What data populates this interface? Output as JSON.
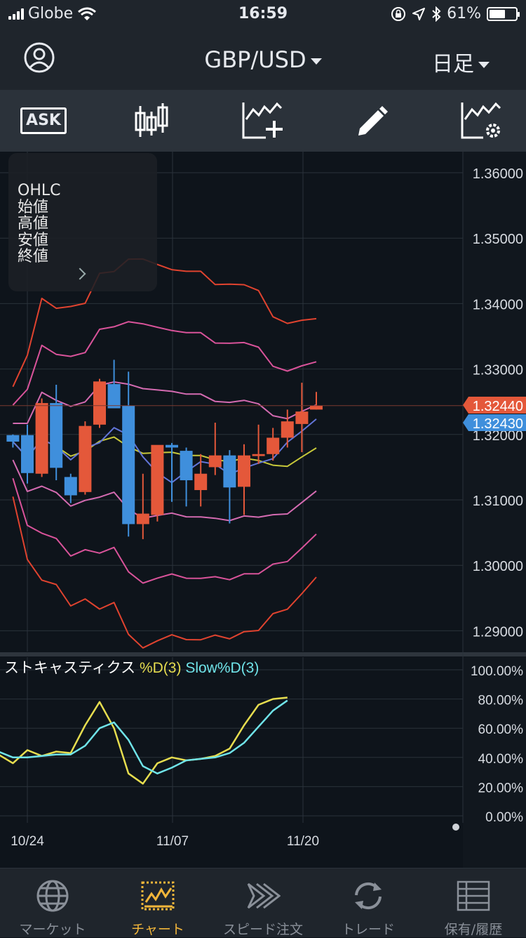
{
  "status": {
    "carrier": "Globe",
    "time": "16:59",
    "battery": "61%",
    "battery_level": 0.61
  },
  "header": {
    "pair": "GBP/USD",
    "period": "日足"
  },
  "toolbar": {
    "ask_label": "ASK",
    "tools": [
      "ask-toggle",
      "candlestick-type",
      "add-indicator",
      "draw-tool",
      "indicator-settings"
    ]
  },
  "ohlc_panel": {
    "lines": [
      "OHLC",
      "始値",
      "高値",
      "安値",
      "終値"
    ]
  },
  "chart_data": [
    {
      "type": "candlestick",
      "symbol": "GBP/USD",
      "y_ticks": [
        "1.36000",
        "1.35000",
        "1.34000",
        "1.33000",
        "1.32000",
        "1.31000",
        "1.30000",
        "1.29000"
      ],
      "ylim": [
        1.2845,
        1.3665
      ],
      "x_ticks": [
        "10/24",
        "11/07",
        "11/20"
      ],
      "price_tags": [
        {
          "label": "1.32440",
          "value": 1.3244,
          "color": "#e4583a"
        },
        {
          "label": "1.32430",
          "value": 1.3243,
          "color": "#3f8fdc"
        }
      ],
      "candles": [
        {
          "o": 1.3199,
          "h": 1.32,
          "l": 1.318,
          "c": 1.3189
        },
        {
          "o": 1.3199,
          "h": 1.3215,
          "l": 1.3125,
          "c": 1.3141
        },
        {
          "o": 1.314,
          "h": 1.3255,
          "l": 1.3135,
          "c": 1.3248
        },
        {
          "o": 1.3248,
          "h": 1.3276,
          "l": 1.313,
          "c": 1.3149
        },
        {
          "o": 1.3135,
          "h": 1.314,
          "l": 1.3095,
          "c": 1.3107
        },
        {
          "o": 1.3112,
          "h": 1.322,
          "l": 1.3108,
          "c": 1.3213
        },
        {
          "o": 1.3215,
          "h": 1.3285,
          "l": 1.321,
          "c": 1.3281
        },
        {
          "o": 1.3277,
          "h": 1.3314,
          "l": 1.324,
          "c": 1.324
        },
        {
          "o": 1.3244,
          "h": 1.3296,
          "l": 1.3044,
          "c": 1.3063
        },
        {
          "o": 1.3063,
          "h": 1.314,
          "l": 1.304,
          "c": 1.3079
        },
        {
          "o": 1.3077,
          "h": 1.3182,
          "l": 1.3067,
          "c": 1.3184
        },
        {
          "o": 1.3184,
          "h": 1.3187,
          "l": 1.3097,
          "c": 1.318
        },
        {
          "o": 1.3175,
          "h": 1.318,
          "l": 1.309,
          "c": 1.313
        },
        {
          "o": 1.3115,
          "h": 1.317,
          "l": 1.309,
          "c": 1.314
        },
        {
          "o": 1.315,
          "h": 1.3218,
          "l": 1.3138,
          "c": 1.3168
        },
        {
          "o": 1.3168,
          "h": 1.3176,
          "l": 1.3064,
          "c": 1.3119
        },
        {
          "o": 1.312,
          "h": 1.3185,
          "l": 1.3077,
          "c": 1.3168
        },
        {
          "o": 1.3167,
          "h": 1.3215,
          "l": 1.3155,
          "c": 1.317
        },
        {
          "o": 1.317,
          "h": 1.321,
          "l": 1.316,
          "c": 1.3195
        },
        {
          "o": 1.3195,
          "h": 1.3238,
          "l": 1.318,
          "c": 1.322
        },
        {
          "o": 1.3216,
          "h": 1.3279,
          "l": 1.3173,
          "c": 1.3235
        },
        {
          "o": 1.3238,
          "h": 1.3265,
          "l": 1.3238,
          "c": 1.3244
        }
      ],
      "indicator_colors": {
        "up": "#e4583a",
        "down": "#3f8fdc",
        "sigma3": "#e0432f",
        "sigma2": "#d9539a",
        "sigma1": "#d46bb1",
        "ma_yellow": "#c7c83a",
        "ma_blue": "#6275d8"
      }
    },
    {
      "type": "line",
      "title_parts": {
        "name": "ストキャスティクス",
        "d_label": "%D(3)",
        "slow_label": "Slow%D(3)"
      },
      "y_ticks": [
        "100.00%",
        "80.00%",
        "60.00%",
        "40.00%",
        "20.00%",
        "0.00%"
      ],
      "ylim": [
        0,
        100
      ],
      "series": [
        {
          "name": "%D(3)",
          "color": "#e6dd4f",
          "values": [
            42,
            36,
            45,
            41,
            44,
            43,
            62,
            78,
            60,
            29,
            22,
            36,
            40,
            38,
            39,
            41,
            46,
            62,
            76,
            80,
            81
          ]
        },
        {
          "name": "Slow%D(3)",
          "color": "#6fe3e8",
          "values": [
            44,
            40,
            40,
            41,
            42,
            42,
            48,
            60,
            64,
            52,
            34,
            29,
            33,
            38,
            39,
            40,
            43,
            50,
            61,
            72,
            79
          ]
        }
      ]
    }
  ],
  "tabs": [
    {
      "label": "マーケット",
      "icon": "globe-icon"
    },
    {
      "label": "チャート",
      "icon": "chart-icon",
      "active": true
    },
    {
      "label": "スピード注文",
      "icon": "speed-order-icon"
    },
    {
      "label": "トレード",
      "icon": "trade-icon"
    },
    {
      "label": "保有/履歴",
      "icon": "history-icon"
    }
  ]
}
